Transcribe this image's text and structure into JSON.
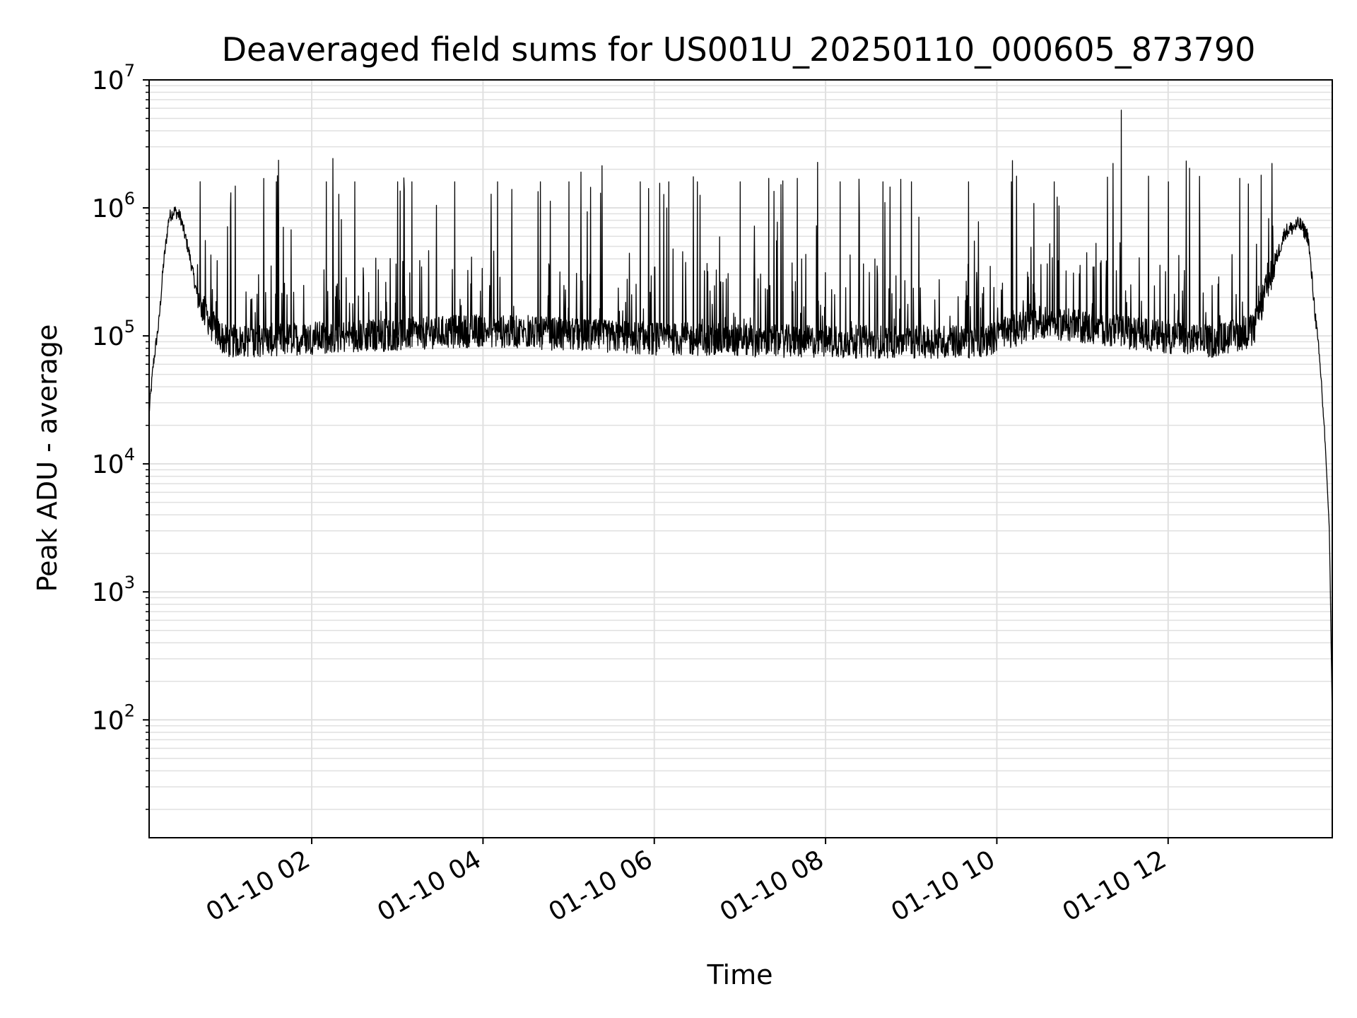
{
  "chart_data": {
    "type": "line",
    "title": "Deaveraged field sums for US001U_20250110_000605_873790",
    "xlabel": "Time",
    "ylabel": "Peak ADU - average",
    "yscale": "log",
    "ylim": [
      12,
      10000000
    ],
    "xlim": [
      "2025-01-10T00:06:05",
      "2025-01-10T13:55:00"
    ],
    "grid": true,
    "line_color": "#000000",
    "grid_color": "#e0e0e0",
    "x_ticks": [
      {
        "value": "2025-01-10T02:00:00",
        "label": "01-10 02"
      },
      {
        "value": "2025-01-10T04:00:00",
        "label": "01-10 04"
      },
      {
        "value": "2025-01-10T06:00:00",
        "label": "01-10 06"
      },
      {
        "value": "2025-01-10T08:00:00",
        "label": "01-10 08"
      },
      {
        "value": "2025-01-10T10:00:00",
        "label": "01-10 10"
      },
      {
        "value": "2025-01-10T12:00:00",
        "label": "01-10 12"
      }
    ],
    "y_ticks": [
      {
        "value": 100,
        "base": "10",
        "exp": "2"
      },
      {
        "value": 1000,
        "base": "10",
        "exp": "3"
      },
      {
        "value": 10000,
        "base": "10",
        "exp": "4"
      },
      {
        "value": 100000,
        "base": "10",
        "exp": "5"
      },
      {
        "value": 1000000,
        "base": "10",
        "exp": "6"
      },
      {
        "value": 10000000,
        "base": "10",
        "exp": "7"
      }
    ],
    "series": [
      {
        "envelope": [
          {
            "t": "2025-01-10T00:06:05",
            "v": 25000
          },
          {
            "t": "2025-01-10T00:09:00",
            "v": 60000
          },
          {
            "t": "2025-01-10T00:13:00",
            "v": 130000
          },
          {
            "t": "2025-01-10T00:16:00",
            "v": 350000
          },
          {
            "t": "2025-01-10T00:20:00",
            "v": 850000
          },
          {
            "t": "2025-01-10T00:24:00",
            "v": 950000
          },
          {
            "t": "2025-01-10T00:28:00",
            "v": 850000
          },
          {
            "t": "2025-01-10T00:34:00",
            "v": 450000
          },
          {
            "t": "2025-01-10T00:40:00",
            "v": 200000
          },
          {
            "t": "2025-01-10T00:50:00",
            "v": 120000
          },
          {
            "t": "2025-01-10T01:00:00",
            "v": 90000
          },
          {
            "t": "2025-01-10T04:00:00",
            "v": 110000
          },
          {
            "t": "2025-01-10T06:00:00",
            "v": 95000
          },
          {
            "t": "2025-01-10T08:00:00",
            "v": 90000
          },
          {
            "t": "2025-01-10T09:50:00",
            "v": 90000
          },
          {
            "t": "2025-01-10T10:30:00",
            "v": 130000
          },
          {
            "t": "2025-01-10T11:20:00",
            "v": 110000
          },
          {
            "t": "2025-01-10T12:30:00",
            "v": 90000
          },
          {
            "t": "2025-01-10T13:00:00",
            "v": 110000
          },
          {
            "t": "2025-01-10T13:12:00",
            "v": 300000
          },
          {
            "t": "2025-01-10T13:22:00",
            "v": 650000
          },
          {
            "t": "2025-01-10T13:32:00",
            "v": 750000
          },
          {
            "t": "2025-01-10T13:38:00",
            "v": 600000
          },
          {
            "t": "2025-01-10T13:43:00",
            "v": 150000
          },
          {
            "t": "2025-01-10T13:47:00",
            "v": 50000
          },
          {
            "t": "2025-01-10T13:50:00",
            "v": 15000
          },
          {
            "t": "2025-01-10T13:53:00",
            "v": 3000
          },
          {
            "t": "2025-01-10T13:55:00",
            "v": 100
          }
        ],
        "spikes": [
          {
            "t": "2025-01-10T01:35:00",
            "v": 1600000
          },
          {
            "t": "2025-01-10T02:10:00",
            "v": 1600000
          },
          {
            "t": "2025-01-10T02:30:00",
            "v": 1600000
          },
          {
            "t": "2025-01-10T03:00:00",
            "v": 1600000
          },
          {
            "t": "2025-01-10T03:10:00",
            "v": 1600000
          },
          {
            "t": "2025-01-10T03:40:00",
            "v": 1600000
          },
          {
            "t": "2025-01-10T04:10:00",
            "v": 1600000
          },
          {
            "t": "2025-01-10T04:40:00",
            "v": 1600000
          },
          {
            "t": "2025-01-10T05:00:00",
            "v": 1600000
          },
          {
            "t": "2025-01-10T05:50:00",
            "v": 1600000
          },
          {
            "t": "2025-01-10T06:10:00",
            "v": 1600000
          },
          {
            "t": "2025-01-10T06:30:00",
            "v": 1600000
          },
          {
            "t": "2025-01-10T07:00:00",
            "v": 1600000
          },
          {
            "t": "2025-01-10T07:20:00",
            "v": 1700000
          },
          {
            "t": "2025-01-10T07:40:00",
            "v": 1700000
          },
          {
            "t": "2025-01-10T08:10:00",
            "v": 1600000
          },
          {
            "t": "2025-01-10T08:40:00",
            "v": 1600000
          },
          {
            "t": "2025-01-10T09:00:00",
            "v": 1600000
          },
          {
            "t": "2025-01-10T09:40:00",
            "v": 1600000
          },
          {
            "t": "2025-01-10T10:10:00",
            "v": 1600000
          },
          {
            "t": "2025-01-10T10:40:00",
            "v": 1600000
          },
          {
            "t": "2025-01-10T11:27:00",
            "v": 5800000
          },
          {
            "t": "2025-01-10T12:00:00",
            "v": 1600000
          },
          {
            "t": "2025-01-10T12:50:00",
            "v": 1700000
          },
          {
            "t": "2025-01-10T13:05:00",
            "v": 1800000
          }
        ]
      }
    ]
  }
}
